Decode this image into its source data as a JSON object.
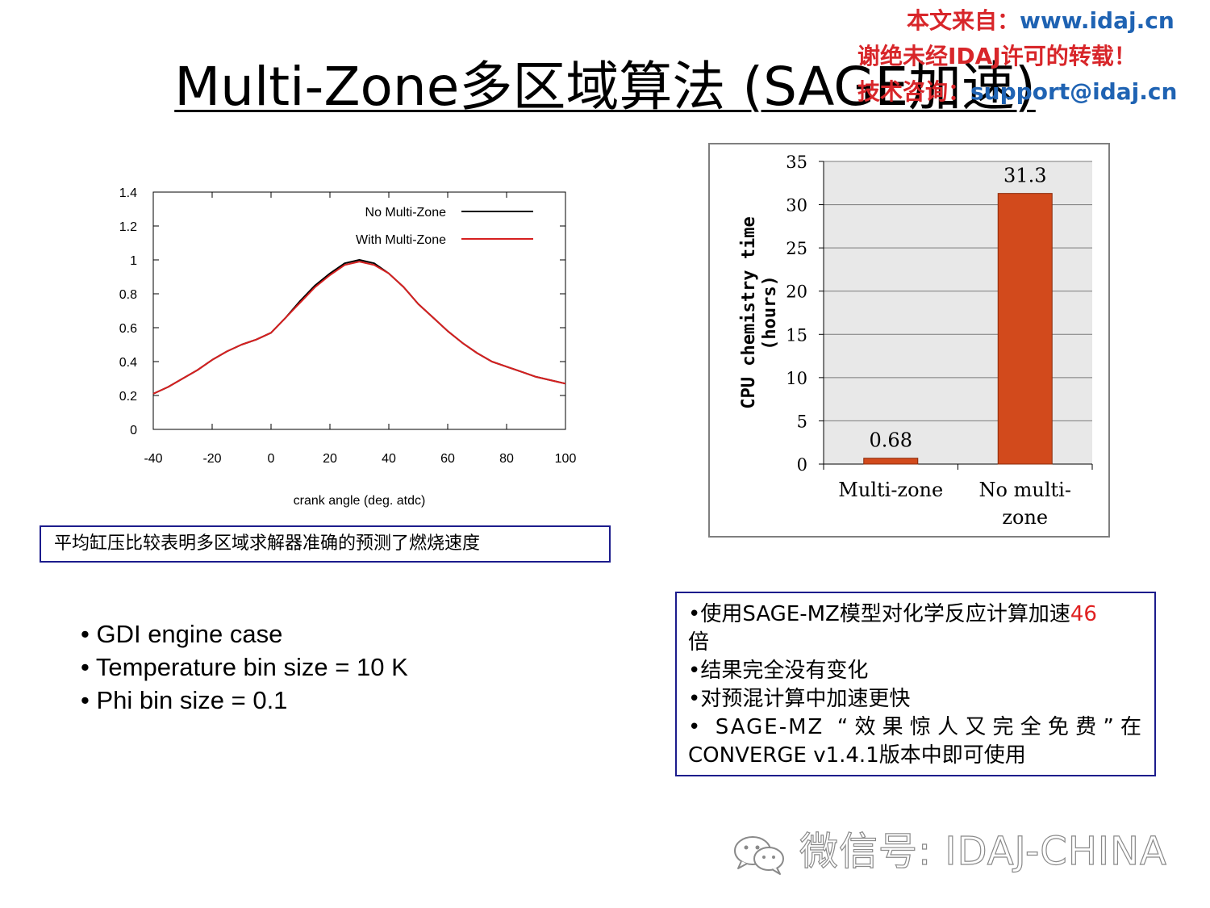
{
  "title": "Multi-Zone多区域算法 (SAGE加速)",
  "watermark": {
    "line1_prefix": "本文来自：",
    "line1_url": "www.idaj.cn",
    "line2": "谢绝未经IDAJ许可的转载！",
    "line3_prefix": "技术咨询：",
    "line3_email": "support@idaj.cn"
  },
  "caption": "平均缸压比较表明多区域求解器准确的预测了燃烧速度",
  "bullets": [
    "• GDI engine case",
    "• Temperature bin size = 10 K",
    "• Phi bin size  = 0.1"
  ],
  "result_box": {
    "line1_text": "•使用SAGE-MZ模型对化学反应计算加速",
    "line1_highlight": "46",
    "line1_wrap": "倍",
    "line2": "•结果完全没有变化",
    "line3": "•对预混计算中加速更快",
    "line4": "• SAGE-MZ “效果惊人又完全免费”在",
    "line5": "CONVERGE v1.4.1版本中即可使用"
  },
  "wechat_label": "微信号: IDAJ-CHINA",
  "colors": {
    "no_multi_zone": "#000000",
    "with_multi_zone": "#d62020",
    "bar_fill": "#d24a1c",
    "bar_plot_bg": "#e8e8e8",
    "highlight": "#e02020",
    "box_border": "#1c1c8c"
  },
  "chart_data": [
    {
      "type": "line",
      "title": "",
      "xlabel": "crank angle (deg. atdc)",
      "ylabel": "",
      "xlim": [
        -40,
        100
      ],
      "ylim": [
        0,
        1.4
      ],
      "x_ticks": [
        "-40",
        "-20",
        "0",
        "20",
        "40",
        "60",
        "80",
        "100"
      ],
      "y_ticks": [
        "0",
        "0.2",
        "0.4",
        "0.6",
        "0.8",
        "1",
        "1.2",
        "1.4"
      ],
      "legend_position": "top-right",
      "grid": false,
      "series": [
        {
          "name": "No Multi-Zone",
          "color": "#000000",
          "x": [
            -40,
            -35,
            -30,
            -25,
            -20,
            -15,
            -10,
            -5,
            0,
            5,
            10,
            15,
            20,
            25,
            30,
            35,
            40,
            45,
            50,
            55,
            60,
            65,
            70,
            75,
            80,
            85,
            90,
            95,
            100
          ],
          "y": [
            0.21,
            0.25,
            0.3,
            0.35,
            0.41,
            0.46,
            0.5,
            0.53,
            0.57,
            0.66,
            0.76,
            0.85,
            0.92,
            0.98,
            1.0,
            0.98,
            0.92,
            0.84,
            0.74,
            0.66,
            0.58,
            0.51,
            0.45,
            0.4,
            0.37,
            0.34,
            0.31,
            0.29,
            0.27
          ]
        },
        {
          "name": "With Multi-Zone",
          "color": "#d62020",
          "x": [
            -40,
            -35,
            -30,
            -25,
            -20,
            -15,
            -10,
            -5,
            0,
            5,
            10,
            15,
            20,
            25,
            30,
            35,
            40,
            45,
            50,
            55,
            60,
            65,
            70,
            75,
            80,
            85,
            90,
            95,
            100
          ],
          "y": [
            0.21,
            0.25,
            0.3,
            0.35,
            0.41,
            0.46,
            0.5,
            0.53,
            0.57,
            0.66,
            0.75,
            0.84,
            0.91,
            0.97,
            0.99,
            0.97,
            0.92,
            0.84,
            0.74,
            0.66,
            0.58,
            0.51,
            0.45,
            0.4,
            0.37,
            0.34,
            0.31,
            0.29,
            0.27
          ]
        }
      ]
    },
    {
      "type": "bar",
      "title": "",
      "ylabel": "CPU chemistry time (hours)",
      "ylabel_lines": [
        "CPU chemistry time",
        "(hours)"
      ],
      "ylim": [
        0,
        35
      ],
      "y_ticks": [
        "0",
        "5",
        "10",
        "15",
        "20",
        "25",
        "30",
        "35"
      ],
      "grid": true,
      "categories": [
        "Multi-zone",
        "No multi-zone"
      ],
      "category_lines": [
        [
          "Multi-zone"
        ],
        [
          "No multi-",
          "zone"
        ]
      ],
      "values": [
        0.68,
        31.3
      ],
      "value_labels": [
        "0.68",
        "31.3"
      ],
      "color": "#d24a1c"
    }
  ]
}
